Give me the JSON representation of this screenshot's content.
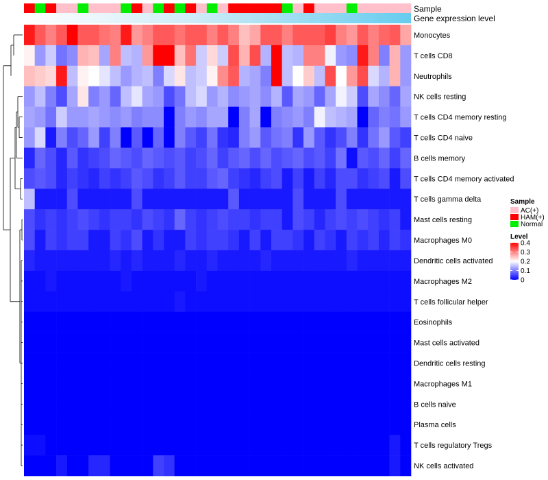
{
  "chart_data": {
    "type": "heatmap",
    "annotation_tracks": {
      "sample_title": "Sample",
      "gene_title": "Gene expression level"
    },
    "sample_groups": [
      "AC(+)",
      "HAM(+)",
      "Normal"
    ],
    "sample_group_colors": {
      "AC(+)": "#FFC0CB",
      "HAM(+)": "#FF0000",
      "Normal": "#00EE00"
    },
    "column_samples": [
      "HAM(+)",
      "Normal",
      "HAM(+)",
      "AC(+)",
      "AC(+)",
      "Normal",
      "AC(+)",
      "AC(+)",
      "AC(+)",
      "Normal",
      "HAM(+)",
      "AC(+)",
      "Normal",
      "HAM(+)",
      "Normal",
      "HAM(+)",
      "AC(+)",
      "Normal",
      "AC(+)",
      "HAM(+)",
      "HAM(+)",
      "HAM(+)",
      "HAM(+)",
      "HAM(+)",
      "Normal",
      "AC(+)",
      "HAM(+)",
      "AC(+)",
      "AC(+)",
      "AC(+)",
      "Normal",
      "AC(+)",
      "AC(+)",
      "AC(+)",
      "AC(+)",
      "AC(+)"
    ],
    "gene_expression_color": "#66CCEE",
    "legend": {
      "sample_title": "Sample",
      "level_title": "Level",
      "level_ticks": [
        "0.4",
        "0.3",
        "0.2",
        "0.1",
        "0"
      ]
    },
    "color_scale": {
      "low": "#0000FF",
      "mid": "#FFFFFF",
      "high": "#FF0000",
      "min": 0,
      "mid_value": 0.2,
      "max": 0.4
    },
    "rows": [
      {
        "name": "Monocytes",
        "pattern": [
          0.38,
          0.33,
          0.3,
          0.33,
          0.4,
          0.33,
          0.33,
          0.31,
          0.3,
          0.38,
          0.28,
          0.3,
          0.33,
          0.33,
          0.31,
          0.33,
          0.33,
          0.3,
          0.33,
          0.3,
          0.25,
          0.27,
          0.33,
          0.33,
          0.3,
          0.33,
          0.33,
          0.33,
          0.35,
          0.3,
          0.28,
          0.33,
          0.3,
          0.32,
          0.33,
          0.27
        ]
      },
      {
        "name": "T cells CD8",
        "pattern": [
          0.21,
          0.12,
          0.16,
          0.09,
          0.11,
          0.26,
          0.25,
          0.13,
          0.3,
          0.15,
          0.14,
          0.28,
          0.4,
          0.4,
          0.25,
          0.31,
          0.16,
          0.23,
          0.16,
          0.34,
          0.26,
          0.34,
          0.14,
          0.4,
          0.15,
          0.14,
          0.3,
          0.3,
          0.19,
          0.12,
          0.11,
          0.38,
          0.3,
          0.1,
          0.26,
          0.12
        ]
      },
      {
        "name": "Neutrophils",
        "pattern": [
          0.25,
          0.24,
          0.23,
          0.38,
          0.15,
          0.21,
          0.2,
          0.18,
          0.15,
          0.12,
          0.14,
          0.15,
          0.1,
          0.17,
          0.22,
          0.15,
          0.16,
          0.21,
          0.29,
          0.33,
          0.14,
          0.13,
          0.1,
          0.4,
          0.15,
          0.2,
          0.24,
          0.15,
          0.34,
          0.2,
          0.28,
          0.34,
          0.17,
          0.14,
          0.26,
          0.12
        ]
      },
      {
        "name": "NK cells resting",
        "pattern": [
          0.12,
          0.15,
          0.1,
          0.06,
          0.13,
          0.22,
          0.1,
          0.12,
          0.08,
          0.15,
          0.18,
          0.13,
          0.12,
          0.06,
          0.09,
          0.15,
          0.17,
          0.12,
          0.14,
          0.11,
          0.12,
          0.13,
          0.11,
          0.14,
          0.07,
          0.13,
          0.12,
          0.08,
          0.13,
          0.19,
          0.16,
          0.06,
          0.13,
          0.11,
          0.08,
          0.13
        ]
      },
      {
        "name": "T cells CD4 memory resting",
        "pattern": [
          0.13,
          0.12,
          0.09,
          0.16,
          0.12,
          0.12,
          0.13,
          0.12,
          0.11,
          0.12,
          0.1,
          0.11,
          0.11,
          0.0,
          0.1,
          0.12,
          0.11,
          0.13,
          0.13,
          0.0,
          0.1,
          0.13,
          0.0,
          0.1,
          0.11,
          0.12,
          0.1,
          0.19,
          0.15,
          0.14,
          0.13,
          0.0,
          0.08,
          0.1,
          0.09,
          0.12
        ]
      },
      {
        "name": "T cells CD4 naive",
        "pattern": [
          0.12,
          0.17,
          0.02,
          0.1,
          0.06,
          0.08,
          0.12,
          0.05,
          0.1,
          0.0,
          0.07,
          0.0,
          0.08,
          0.0,
          0.1,
          0.07,
          0.05,
          0.09,
          0.04,
          0.03,
          0.1,
          0.12,
          0.07,
          0.09,
          0.1,
          0.04,
          0.12,
          0.07,
          0.04,
          0.06,
          0.1,
          0.04,
          0.09,
          0.12,
          0.07,
          0.05
        ]
      },
      {
        "name": "B cells memory",
        "pattern": [
          0.03,
          0.08,
          0.06,
          0.03,
          0.07,
          0.04,
          0.05,
          0.06,
          0.08,
          0.07,
          0.06,
          0.08,
          0.07,
          0.06,
          0.07,
          0.05,
          0.06,
          0.08,
          0.05,
          0.07,
          0.08,
          0.06,
          0.08,
          0.06,
          0.07,
          0.08,
          0.06,
          0.07,
          0.05,
          0.09,
          0.01,
          0.07,
          0.06,
          0.08,
          0.05,
          0.08
        ]
      },
      {
        "name": "T cells CD4 memory activated",
        "pattern": [
          0.06,
          0.07,
          0.06,
          0.03,
          0.05,
          0.04,
          0.03,
          0.05,
          0.04,
          0.05,
          0.07,
          0.06,
          0.04,
          0.05,
          0.07,
          0.05,
          0.05,
          0.07,
          0.08,
          0.05,
          0.04,
          0.03,
          0.05,
          0.06,
          0.02,
          0.05,
          0.02,
          0.05,
          0.03,
          0.06,
          0.06,
          0.04,
          0.05,
          0.06,
          0.02,
          0.06
        ]
      },
      {
        "name": "T cells gamma delta",
        "pattern": [
          0.15,
          0.02,
          0.02,
          0.02,
          0.06,
          0.02,
          0.02,
          0.02,
          0.02,
          0.02,
          0.06,
          0.02,
          0.02,
          0.02,
          0.02,
          0.02,
          0.02,
          0.02,
          0.02,
          0.07,
          0.02,
          0.02,
          0.02,
          0.02,
          0.02,
          0.06,
          0.02,
          0.02,
          0.02,
          0.06,
          0.02,
          0.02,
          0.02,
          0.02,
          0.02,
          0.02
        ]
      },
      {
        "name": "Mast cells resting",
        "pattern": [
          0.06,
          0.04,
          0.05,
          0.04,
          0.05,
          0.06,
          0.05,
          0.04,
          0.05,
          0.05,
          0.04,
          0.06,
          0.05,
          0.04,
          0.08,
          0.05,
          0.04,
          0.05,
          0.06,
          0.05,
          0.05,
          0.04,
          0.05,
          0.05,
          0.02,
          0.06,
          0.05,
          0.03,
          0.05,
          0.06,
          0.05,
          0.06,
          0.05,
          0.04,
          0.05,
          0.02
        ]
      },
      {
        "name": "Macrophages M0",
        "pattern": [
          0.06,
          0.02,
          0.05,
          0.04,
          0.05,
          0.05,
          0.02,
          0.02,
          0.05,
          0.04,
          0.06,
          0.02,
          0.04,
          0.02,
          0.02,
          0.05,
          0.04,
          0.05,
          0.05,
          0.04,
          0.02,
          0.05,
          0.02,
          0.05,
          0.05,
          0.04,
          0.02,
          0.05,
          0.04,
          0.02,
          0.05,
          0.04,
          0.05,
          0.03,
          0.05,
          0.04
        ]
      },
      {
        "name": "Dendritic cells activated",
        "pattern": [
          0.03,
          0.02,
          0.02,
          0.02,
          0.02,
          0.02,
          0.02,
          0.02,
          0.03,
          0.02,
          0.03,
          0.02,
          0.02,
          0.02,
          0.03,
          0.02,
          0.02,
          0.03,
          0.02,
          0.02,
          0.02,
          0.02,
          0.03,
          0.02,
          0.02,
          0.02,
          0.02,
          0.02,
          0.02,
          0.02,
          0.03,
          0.02,
          0.02,
          0.02,
          0.02,
          0.02
        ]
      },
      {
        "name": "Macrophages M2",
        "pattern": [
          0.01,
          0.01,
          0.02,
          0.01,
          0.01,
          0.01,
          0.01,
          0.01,
          0.01,
          0.02,
          0.01,
          0.01,
          0.01,
          0.01,
          0.01,
          0.01,
          0.02,
          0.01,
          0.01,
          0.01,
          0.01,
          0.01,
          0.01,
          0.01,
          0.01,
          0.01,
          0.01,
          0.01,
          0.01,
          0.01,
          0.01,
          0.01,
          0.01,
          0.01,
          0.01,
          0.01
        ]
      },
      {
        "name": "T cells follicular helper",
        "pattern": [
          0.01,
          0.01,
          0.01,
          0.01,
          0.01,
          0.01,
          0.01,
          0.01,
          0.01,
          0.01,
          0.01,
          0.01,
          0.01,
          0.01,
          0.02,
          0.01,
          0.01,
          0.01,
          0.01,
          0.01,
          0.01,
          0.01,
          0.01,
          0.01,
          0.01,
          0.01,
          0.01,
          0.01,
          0.01,
          0.01,
          0.01,
          0.01,
          0.01,
          0.01,
          0.01,
          0.01
        ]
      },
      {
        "name": "Eosinophils",
        "pattern": [
          0,
          0,
          0,
          0,
          0,
          0,
          0,
          0,
          0,
          0,
          0,
          0,
          0,
          0,
          0,
          0,
          0,
          0,
          0,
          0,
          0,
          0,
          0,
          0,
          0,
          0,
          0,
          0,
          0,
          0,
          0,
          0,
          0,
          0,
          0,
          0
        ]
      },
      {
        "name": "Mast cells activated",
        "pattern": [
          0,
          0,
          0,
          0,
          0,
          0,
          0,
          0,
          0,
          0,
          0,
          0,
          0,
          0,
          0,
          0,
          0,
          0,
          0,
          0,
          0,
          0,
          0,
          0,
          0,
          0,
          0,
          0,
          0,
          0,
          0,
          0,
          0,
          0,
          0,
          0
        ]
      },
      {
        "name": "Dendritic cells resting",
        "pattern": [
          0,
          0,
          0,
          0,
          0,
          0,
          0,
          0,
          0,
          0,
          0,
          0,
          0,
          0,
          0,
          0,
          0,
          0,
          0,
          0,
          0,
          0,
          0,
          0,
          0,
          0,
          0,
          0,
          0,
          0,
          0,
          0,
          0,
          0,
          0,
          0
        ]
      },
      {
        "name": "Macrophages M1",
        "pattern": [
          0,
          0,
          0,
          0,
          0,
          0,
          0,
          0,
          0,
          0,
          0,
          0,
          0,
          0,
          0,
          0,
          0,
          0,
          0,
          0,
          0,
          0,
          0,
          0,
          0,
          0,
          0,
          0,
          0,
          0,
          0,
          0,
          0,
          0,
          0,
          0
        ]
      },
      {
        "name": "B cells naive",
        "pattern": [
          0,
          0,
          0,
          0,
          0,
          0,
          0,
          0,
          0,
          0,
          0,
          0,
          0,
          0,
          0,
          0,
          0,
          0,
          0,
          0,
          0,
          0,
          0,
          0,
          0,
          0,
          0,
          0,
          0,
          0,
          0,
          0,
          0,
          0,
          0,
          0
        ]
      },
      {
        "name": "Plasma cells",
        "pattern": [
          0,
          0,
          0,
          0,
          0,
          0,
          0,
          0,
          0,
          0,
          0,
          0,
          0,
          0,
          0,
          0,
          0,
          0,
          0,
          0,
          0,
          0,
          0,
          0,
          0,
          0,
          0,
          0,
          0,
          0,
          0,
          0,
          0,
          0,
          0,
          0
        ]
      },
      {
        "name": "T cells regulatory  Tregs",
        "pattern": [
          0.01,
          0.01,
          0,
          0,
          0,
          0,
          0,
          0,
          0,
          0,
          0,
          0,
          0,
          0,
          0,
          0,
          0,
          0,
          0,
          0,
          0,
          0,
          0,
          0,
          0,
          0,
          0,
          0,
          0,
          0,
          0,
          0,
          0,
          0,
          0.02,
          0
        ]
      },
      {
        "name": "NK cells activated",
        "pattern": [
          0,
          0,
          0,
          0.02,
          0,
          0,
          0.03,
          0.03,
          0,
          0,
          0,
          0,
          0.05,
          0.04,
          0,
          0,
          0,
          0,
          0,
          0,
          0,
          0,
          0,
          0,
          0,
          0,
          0,
          0,
          0,
          0,
          0,
          0,
          0,
          0,
          0.02,
          0
        ]
      }
    ]
  }
}
